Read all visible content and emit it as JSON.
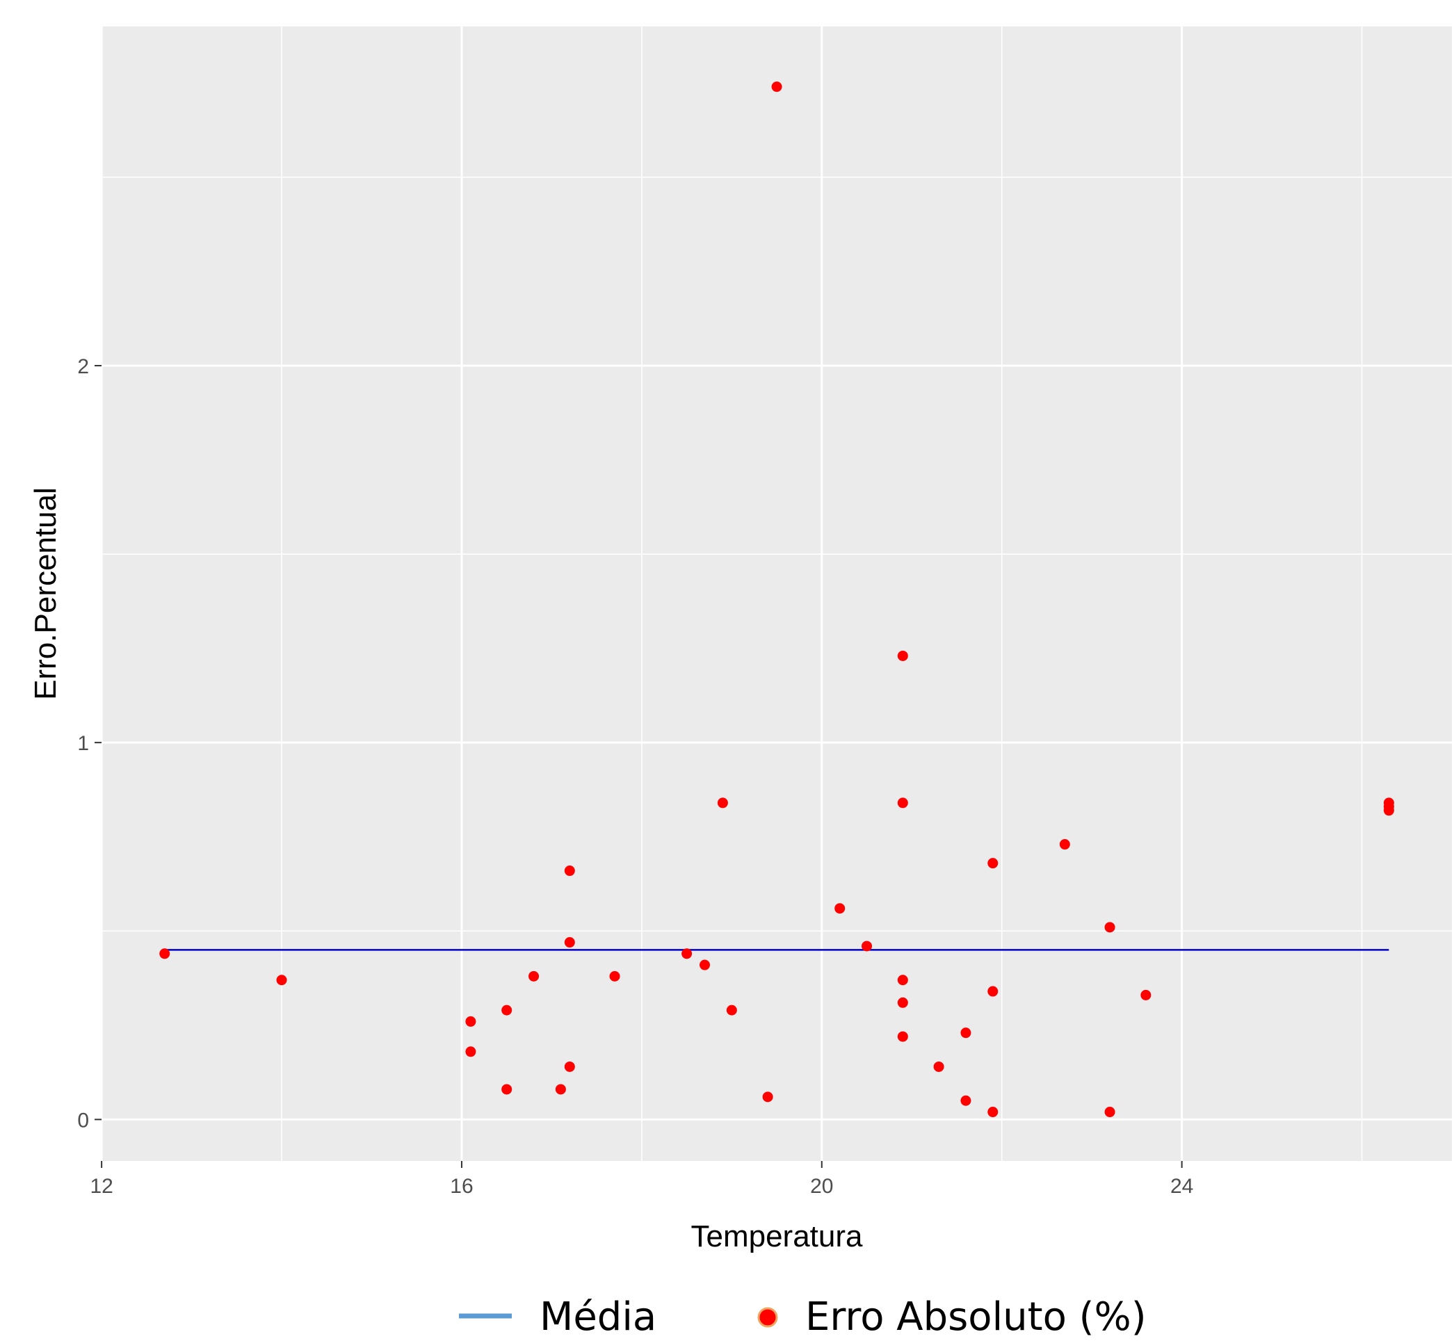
{
  "chart_data": {
    "type": "scatter",
    "xlabel": "Temperatura",
    "ylabel": "Erro.Percentual",
    "xlim": [
      11.999,
      27.0
    ],
    "ylim": [
      -0.11,
      2.9
    ],
    "x_ticks": [
      12,
      16,
      20,
      24
    ],
    "y_ticks": [
      0,
      1,
      2
    ],
    "grid": true,
    "legend_position": "bottom",
    "legend": [
      {
        "label": "Média",
        "type": "line",
        "color": "#5b9bd5"
      },
      {
        "label": "Erro Absoluto (%)",
        "type": "point",
        "color": "#ff0000"
      }
    ],
    "mean_line": {
      "name": "Média",
      "color": "#0000cc",
      "x": [
        12.7,
        26.3
      ],
      "y": 0.45
    },
    "series": [
      {
        "name": "Erro Absoluto (%)",
        "color": "#ff0000",
        "points": [
          {
            "x": 12.7,
            "y": 0.44
          },
          {
            "x": 14.0,
            "y": 0.37
          },
          {
            "x": 16.1,
            "y": 0.26
          },
          {
            "x": 16.1,
            "y": 0.18
          },
          {
            "x": 16.5,
            "y": 0.29
          },
          {
            "x": 16.5,
            "y": 0.08
          },
          {
            "x": 16.8,
            "y": 0.38
          },
          {
            "x": 17.1,
            "y": 0.08
          },
          {
            "x": 17.2,
            "y": 0.66
          },
          {
            "x": 17.2,
            "y": 0.47
          },
          {
            "x": 17.2,
            "y": 0.14
          },
          {
            "x": 17.7,
            "y": 0.38
          },
          {
            "x": 18.5,
            "y": 0.44
          },
          {
            "x": 18.7,
            "y": 0.41
          },
          {
            "x": 18.9,
            "y": 0.84
          },
          {
            "x": 19.0,
            "y": 0.29
          },
          {
            "x": 19.4,
            "y": 0.06
          },
          {
            "x": 19.5,
            "y": 2.74
          },
          {
            "x": 20.2,
            "y": 0.56
          },
          {
            "x": 20.5,
            "y": 0.46
          },
          {
            "x": 20.9,
            "y": 1.23
          },
          {
            "x": 20.9,
            "y": 0.84
          },
          {
            "x": 20.9,
            "y": 0.37
          },
          {
            "x": 20.9,
            "y": 0.31
          },
          {
            "x": 20.9,
            "y": 0.22
          },
          {
            "x": 21.3,
            "y": 0.14
          },
          {
            "x": 21.6,
            "y": 0.23
          },
          {
            "x": 21.6,
            "y": 0.05
          },
          {
            "x": 21.9,
            "y": 0.68
          },
          {
            "x": 21.9,
            "y": 0.34
          },
          {
            "x": 21.9,
            "y": 0.02
          },
          {
            "x": 22.7,
            "y": 0.73
          },
          {
            "x": 23.2,
            "y": 0.51
          },
          {
            "x": 23.2,
            "y": 0.02
          },
          {
            "x": 23.6,
            "y": 0.33
          },
          {
            "x": 26.3,
            "y": 0.84
          },
          {
            "x": 26.3,
            "y": 0.83
          },
          {
            "x": 26.3,
            "y": 0.82
          }
        ]
      }
    ]
  }
}
